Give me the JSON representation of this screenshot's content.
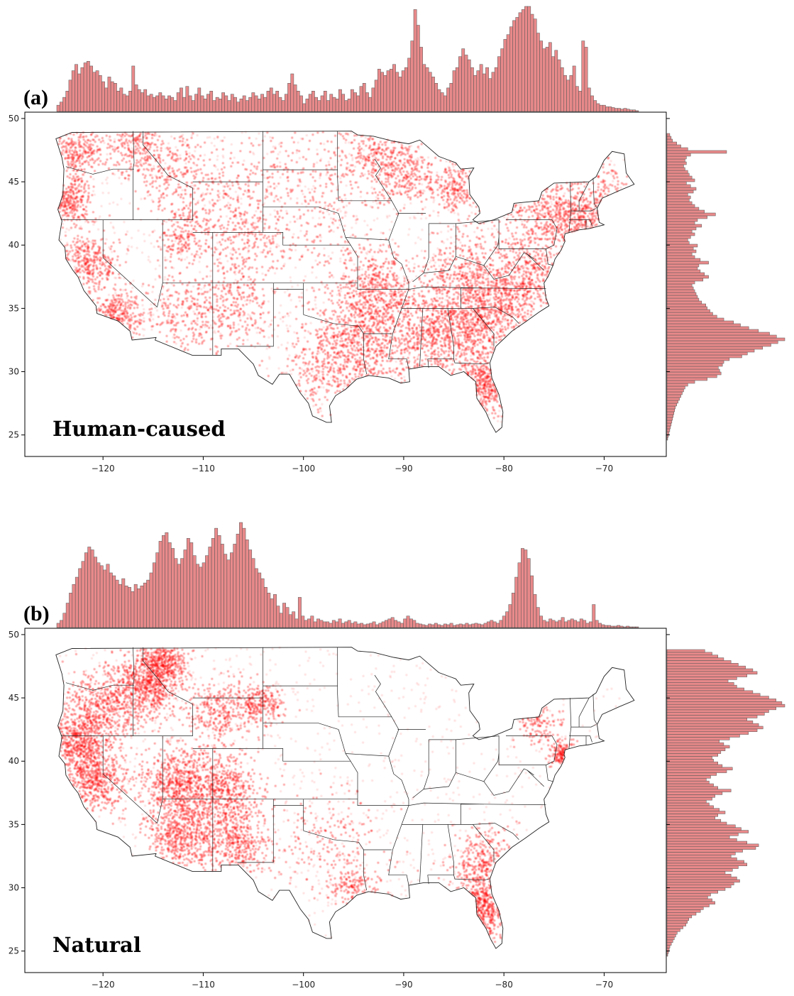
{
  "chart_data": [
    {
      "type": "scatter",
      "panel_label": "(a)",
      "annotation": "Human-caused",
      "point_color": "#ff0000",
      "hist_color": "#e8898a",
      "hist_edge": "#555555",
      "xlim": [
        -127.8,
        -63.8
      ],
      "ylim": [
        23.3,
        50.5
      ],
      "xticks": [
        -120,
        -110,
        -100,
        -90,
        -80,
        -70
      ],
      "xtick_labels": [
        "−120",
        "−110",
        "−100",
        "−90",
        "−80",
        "−70"
      ],
      "yticks": [
        25,
        30,
        35,
        40,
        45,
        50
      ],
      "ytick_labels": [
        "25",
        "30",
        "35",
        "40",
        "45",
        "50"
      ],
      "density_clusters": [
        {
          "lon": -122.5,
          "lat": 47.5,
          "spread": 1.2,
          "weight": 1.0
        },
        {
          "lon": -123.3,
          "lat": 43.5,
          "spread": 1.0,
          "weight": 1.1
        },
        {
          "lon": -121.5,
          "lat": 38.5,
          "spread": 1.4,
          "weight": 1.4
        },
        {
          "lon": -118.5,
          "lat": 34.5,
          "spread": 1.2,
          "weight": 1.2
        },
        {
          "lon": -116.8,
          "lat": 47.8,
          "spread": 1.5,
          "weight": 1.0
        },
        {
          "lon": -113.0,
          "lat": 45.5,
          "spread": 1.8,
          "weight": 0.8
        },
        {
          "lon": -112.0,
          "lat": 40.8,
          "spread": 1.2,
          "weight": 0.7
        },
        {
          "lon": -111.5,
          "lat": 34.5,
          "spread": 2.0,
          "weight": 1.0
        },
        {
          "lon": -106.5,
          "lat": 35.5,
          "spread": 2.0,
          "weight": 0.9
        },
        {
          "lon": -105.5,
          "lat": 40.5,
          "spread": 1.8,
          "weight": 0.8
        },
        {
          "lon": -108.0,
          "lat": 44.0,
          "spread": 2.2,
          "weight": 0.6
        },
        {
          "lon": -101.0,
          "lat": 46.0,
          "spread": 2.8,
          "weight": 0.6
        },
        {
          "lon": -98.5,
          "lat": 41.5,
          "spread": 2.5,
          "weight": 0.5
        },
        {
          "lon": -92.5,
          "lat": 47.0,
          "spread": 1.8,
          "weight": 1.3
        },
        {
          "lon": -89.5,
          "lat": 45.5,
          "spread": 1.5,
          "weight": 0.8
        },
        {
          "lon": -84.8,
          "lat": 44.5,
          "spread": 1.2,
          "weight": 0.8
        },
        {
          "lon": -94.5,
          "lat": 32.5,
          "spread": 2.3,
          "weight": 2.6
        },
        {
          "lon": -92.5,
          "lat": 36.5,
          "spread": 1.8,
          "weight": 1.8
        },
        {
          "lon": -97.5,
          "lat": 30.0,
          "spread": 2.0,
          "weight": 1.0
        },
        {
          "lon": -86.0,
          "lat": 33.0,
          "spread": 2.5,
          "weight": 3.2
        },
        {
          "lon": -81.5,
          "lat": 35.0,
          "spread": 2.3,
          "weight": 2.8
        },
        {
          "lon": -82.0,
          "lat": 29.0,
          "spread": 1.3,
          "weight": 1.6
        },
        {
          "lon": -77.5,
          "lat": 37.5,
          "spread": 1.7,
          "weight": 1.5
        },
        {
          "lon": -75.5,
          "lat": 42.5,
          "spread": 2.0,
          "weight": 2.0
        },
        {
          "lon": -72.0,
          "lat": 42.0,
          "spread": 1.2,
          "weight": 1.0
        },
        {
          "lon": -84.0,
          "lat": 38.5,
          "spread": 1.8,
          "weight": 0.9
        },
        {
          "lon": -70.0,
          "lat": 44.5,
          "spread": 1.2,
          "weight": 0.4
        }
      ],
      "lon_hist": [
        8,
        12,
        18,
        26,
        40,
        52,
        60,
        48,
        56,
        62,
        64,
        58,
        50,
        52,
        46,
        38,
        30,
        44,
        38,
        36,
        26,
        30,
        22,
        20,
        26,
        58,
        34,
        28,
        24,
        28,
        20,
        22,
        18,
        20,
        24,
        20,
        16,
        20,
        18,
        14,
        24,
        30,
        18,
        32,
        20,
        14,
        22,
        30,
        20,
        16,
        22,
        26,
        14,
        18,
        16,
        24,
        20,
        14,
        22,
        18,
        12,
        16,
        20,
        14,
        18,
        24,
        20,
        16,
        22,
        18,
        26,
        30,
        22,
        26,
        18,
        14,
        22,
        36,
        48,
        34,
        26,
        20,
        10,
        16,
        22,
        26,
        18,
        14,
        20,
        26,
        14,
        22,
        18,
        16,
        28,
        22,
        14,
        16,
        28,
        24,
        20,
        32,
        36,
        24,
        18,
        30,
        40,
        54,
        50,
        46,
        52,
        54,
        60,
        50,
        44,
        52,
        56,
        68,
        90,
        130,
        110,
        82,
        60,
        56,
        50,
        44,
        36,
        28,
        24,
        20,
        30,
        36,
        52,
        56,
        70,
        80,
        72,
        66,
        56,
        46,
        52,
        60,
        48,
        56,
        42,
        50,
        56,
        70,
        80,
        92,
        98,
        108,
        116,
        120,
        126,
        130,
        134,
        134,
        124,
        118,
        100,
        90,
        80,
        82,
        88,
        70,
        78,
        66,
        56,
        46,
        40,
        46,
        58,
        32,
        26,
        90,
        82,
        30,
        20,
        14,
        10,
        8,
        8,
        6,
        6,
        5,
        4,
        4,
        3,
        4,
        3,
        2,
        2,
        1
      ],
      "lat_hist": [
        1,
        2,
        3,
        4,
        5,
        6,
        7,
        8,
        9,
        10,
        11,
        12,
        14,
        16,
        18,
        20,
        22,
        24,
        26,
        30,
        40,
        58,
        72,
        78,
        76,
        74,
        80,
        82,
        90,
        108,
        116,
        126,
        138,
        150,
        160,
        170,
        158,
        148,
        132,
        118,
        106,
        96,
        82,
        72,
        66,
        62,
        58,
        56,
        50,
        46,
        44,
        42,
        40,
        38,
        36,
        40,
        52,
        60,
        54,
        48,
        44,
        46,
        60,
        48,
        40,
        36,
        42,
        38,
        44,
        32,
        30,
        34,
        40,
        36,
        42,
        50,
        40,
        44,
        58,
        70,
        54,
        46,
        40,
        36,
        32,
        34,
        30,
        38,
        42,
        34,
        28,
        40,
        36,
        32,
        30,
        26,
        24,
        28,
        26,
        28,
        34,
        86,
        30,
        20,
        14,
        8,
        6,
        4
      ]
    },
    {
      "type": "scatter",
      "panel_label": "(b)",
      "annotation": "Natural",
      "point_color": "#ff0000",
      "hist_color": "#e8898a",
      "hist_edge": "#555555",
      "xlim": [
        -127.8,
        -63.8
      ],
      "ylim": [
        23.3,
        50.5
      ],
      "xticks": [
        -120,
        -110,
        -100,
        -90,
        -80,
        -70
      ],
      "xtick_labels": [
        "−120",
        "−110",
        "−100",
        "−90",
        "−80",
        "−70"
      ],
      "yticks": [
        25,
        30,
        35,
        40,
        45,
        50
      ],
      "ytick_labels": [
        "25",
        "30",
        "35",
        "40",
        "45",
        "50"
      ],
      "density_clusters": [
        {
          "lon": -122.3,
          "lat": 41.5,
          "spread": 1.5,
          "weight": 1.6
        },
        {
          "lon": -120.5,
          "lat": 38.5,
          "spread": 1.5,
          "weight": 1.4
        },
        {
          "lon": -120.0,
          "lat": 44.5,
          "spread": 1.8,
          "weight": 1.4
        },
        {
          "lon": -115.5,
          "lat": 46.0,
          "spread": 1.5,
          "weight": 1.8
        },
        {
          "lon": -114.0,
          "lat": 48.0,
          "spread": 1.0,
          "weight": 1.0
        },
        {
          "lon": -112.0,
          "lat": 34.5,
          "spread": 1.8,
          "weight": 1.8
        },
        {
          "lon": -112.5,
          "lat": 38.5,
          "spread": 1.5,
          "weight": 1.4
        },
        {
          "lon": -108.0,
          "lat": 37.5,
          "spread": 1.8,
          "weight": 1.6
        },
        {
          "lon": -106.5,
          "lat": 33.5,
          "spread": 1.5,
          "weight": 1.0
        },
        {
          "lon": -108.5,
          "lat": 44.0,
          "spread": 1.5,
          "weight": 0.8
        },
        {
          "lon": -104.5,
          "lat": 44.5,
          "spread": 1.0,
          "weight": 0.7
        },
        {
          "lon": -82.0,
          "lat": 28.5,
          "spread": 1.3,
          "weight": 1.6
        },
        {
          "lon": -82.0,
          "lat": 32.0,
          "spread": 1.5,
          "weight": 1.0
        },
        {
          "lon": -74.0,
          "lat": 40.5,
          "spread": 0.6,
          "weight": 0.6
        },
        {
          "lon": -95.0,
          "lat": 30.0,
          "spread": 1.2,
          "weight": 0.5
        },
        {
          "lon": -97.5,
          "lat": 34.0,
          "spread": 2.5,
          "weight": 0.5
        },
        {
          "lon": -76.5,
          "lat": 43.0,
          "spread": 1.0,
          "weight": 0.4
        }
      ],
      "lon_hist": [
        6,
        10,
        20,
        34,
        48,
        60,
        70,
        82,
        92,
        104,
        112,
        108,
        98,
        90,
        86,
        80,
        88,
        76,
        72,
        66,
        60,
        68,
        58,
        56,
        50,
        60,
        54,
        58,
        62,
        66,
        76,
        90,
        104,
        120,
        128,
        132,
        118,
        110,
        96,
        88,
        96,
        108,
        124,
        118,
        100,
        88,
        84,
        90,
        100,
        112,
        124,
        138,
        128,
        116,
        102,
        94,
        104,
        116,
        130,
        146,
        138,
        122,
        108,
        96,
        82,
        76,
        68,
        56,
        48,
        40,
        46,
        30,
        20,
        34,
        28,
        18,
        22,
        12,
        42,
        16,
        10,
        12,
        16,
        8,
        12,
        10,
        8,
        8,
        6,
        10,
        8,
        12,
        6,
        8,
        10,
        6,
        8,
        5,
        6,
        4,
        5,
        6,
        8,
        4,
        6,
        8,
        10,
        12,
        14,
        10,
        8,
        6,
        12,
        16,
        12,
        10,
        6,
        5,
        4,
        3,
        5,
        4,
        6,
        4,
        3,
        5,
        4,
        6,
        3,
        4,
        5,
        4,
        6,
        4,
        5,
        6,
        5,
        4,
        6,
        8,
        10,
        8,
        6,
        10,
        16,
        22,
        32,
        48,
        70,
        90,
        110,
        108,
        96,
        72,
        46,
        28,
        16,
        10,
        8,
        12,
        10,
        8,
        10,
        14,
        8,
        10,
        12,
        10,
        8,
        12,
        10,
        6,
        8,
        32,
        10,
        6,
        4,
        3,
        3,
        2,
        2,
        3,
        2,
        1,
        2,
        1,
        1,
        1
      ],
      "lat_hist": [
        1,
        2,
        3,
        4,
        6,
        8,
        10,
        12,
        14,
        18,
        22,
        26,
        28,
        30,
        34,
        40,
        46,
        50,
        58,
        66,
        62,
        56,
        60,
        70,
        80,
        88,
        92,
        100,
        96,
        88,
        80,
        90,
        98,
        110,
        106,
        96,
        88,
        94,
        104,
        122,
        126,
        110,
        96,
        86,
        98,
        112,
        102,
        94,
        82,
        74,
        66,
        70,
        80,
        72,
        64,
        58,
        54,
        62,
        66,
        76,
        88,
        70,
        64,
        58,
        54,
        60,
        68,
        82,
        90,
        76,
        70,
        64,
        62,
        70,
        74,
        80,
        86,
        78,
        72,
        86,
        100,
        112,
        124,
        132,
        126,
        118,
        110,
        124,
        134,
        140,
        150,
        162,
        158,
        150,
        140,
        128,
        118,
        106,
        96,
        92,
        84,
        96,
        110,
        124,
        118,
        108,
        98,
        88,
        78,
        70,
        62,
        52
      ]
    }
  ]
}
